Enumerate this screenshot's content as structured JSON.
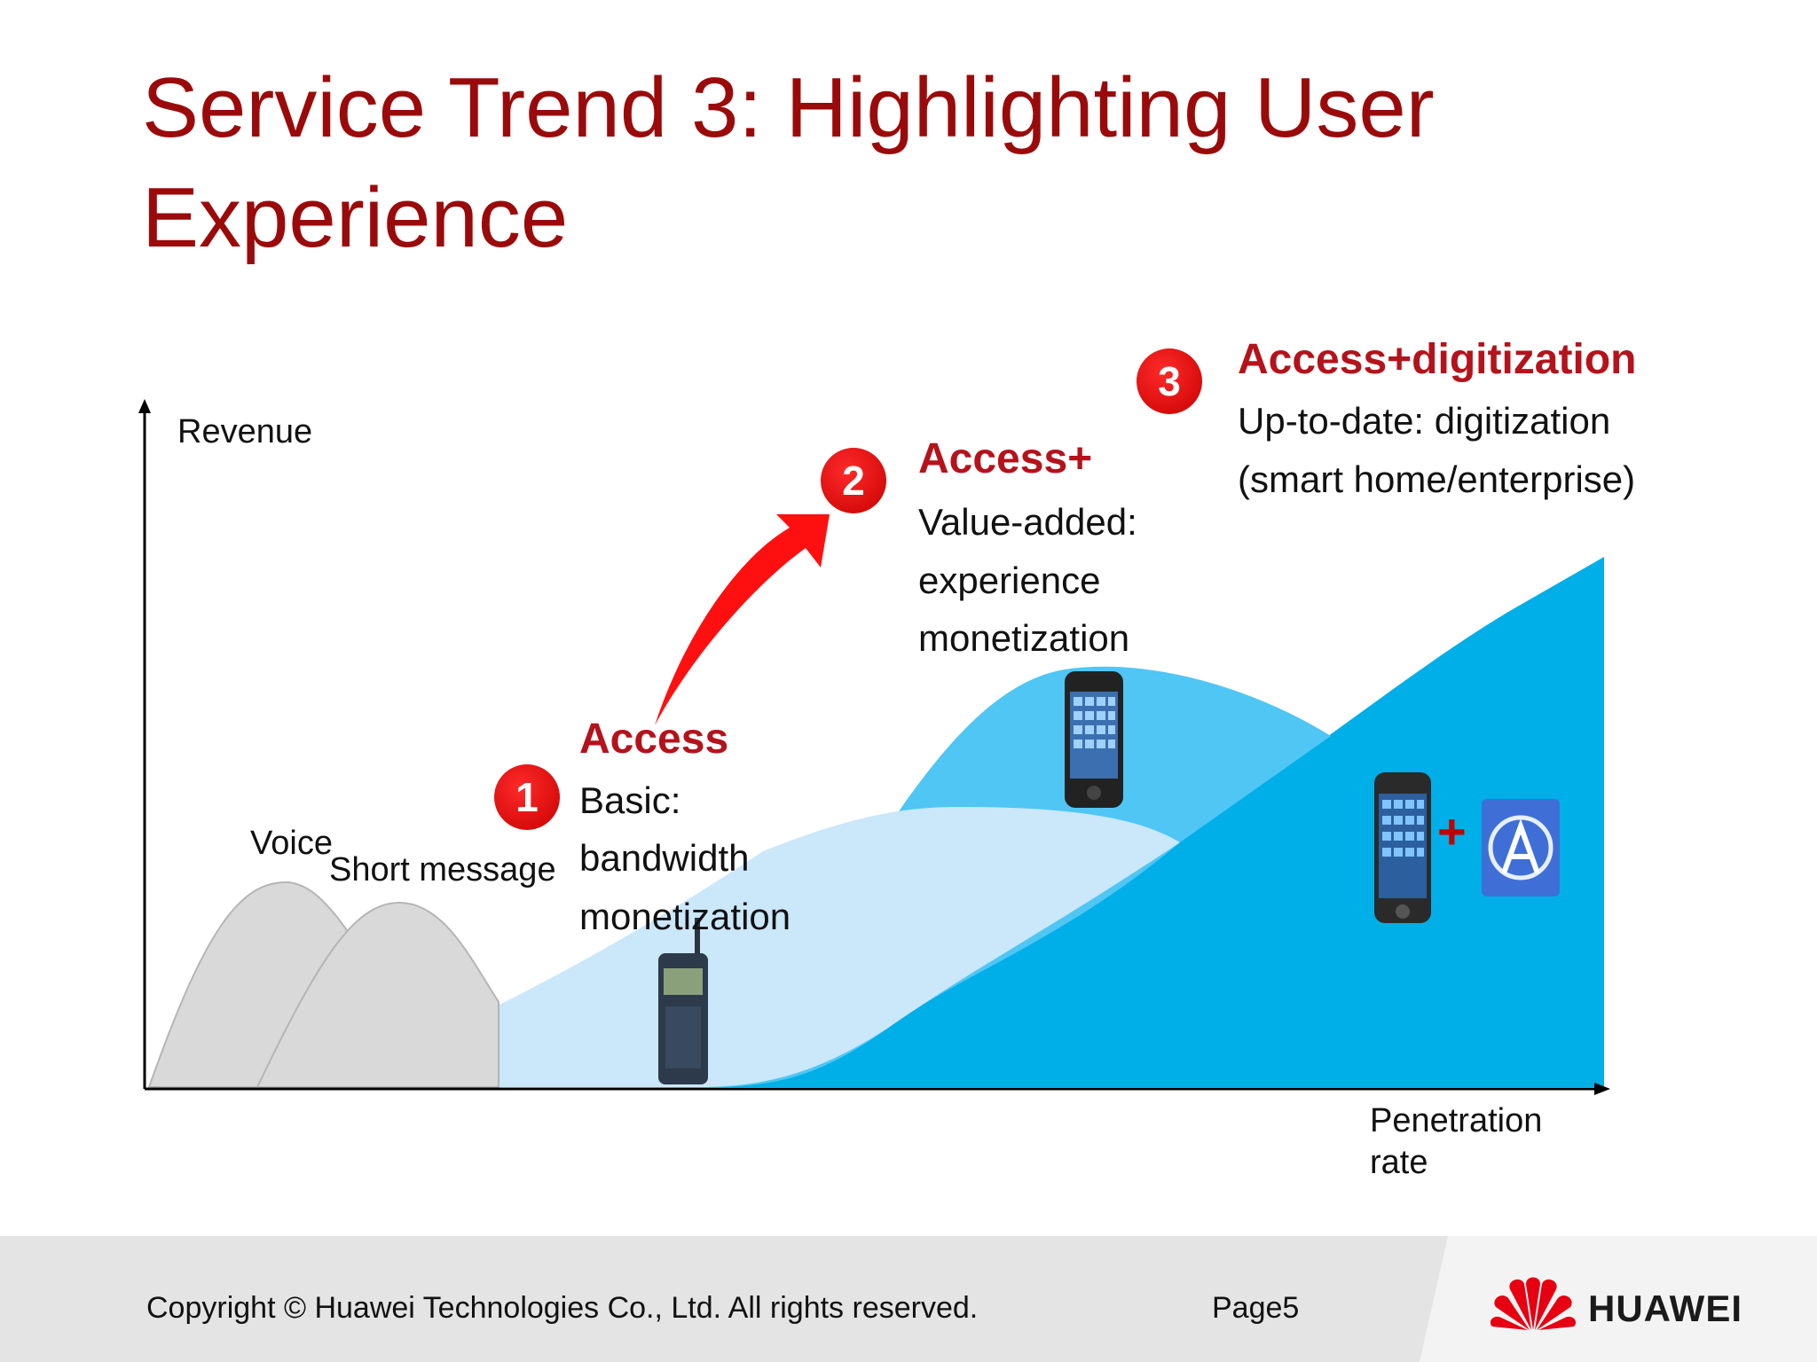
{
  "title": "Service Trend 3: Highlighting User Experience",
  "axes": {
    "y_label": "Revenue",
    "x_label_line1": "Penetration",
    "x_label_line2": "rate"
  },
  "curve_labels": {
    "voice": "Voice",
    "sms": "Short message"
  },
  "stages": [
    {
      "number": "1",
      "heading": "Access",
      "lines": [
        "Basic:",
        "bandwidth",
        "monetization"
      ]
    },
    {
      "number": "2",
      "heading": "Access+",
      "lines": [
        "Value-added:",
        "experience",
        "monetization"
      ]
    },
    {
      "number": "3",
      "heading": "Access+digitization",
      "lines": [
        "Up-to-date: digitization",
        "(smart home/enterprise)"
      ]
    }
  ],
  "plus_sign": "+",
  "footer": {
    "copyright": "Copyright © Huawei Technologies Co., Ltd. All rights reserved.",
    "page": "Page5",
    "brand": "HUAWEI"
  },
  "colors": {
    "title": "#9b0a0a",
    "accent": "#b5121b",
    "badge": "#e00000",
    "light_blue": "#cbe7fa",
    "mid_blue": "#4fc6f4",
    "dark_blue": "#00aee8",
    "gray_curve": "#d9d9d9"
  },
  "icons": [
    "feature-phone-icon",
    "smartphone-icon",
    "smartphone-new-icon",
    "app-store-icon",
    "huawei-logo-icon"
  ]
}
